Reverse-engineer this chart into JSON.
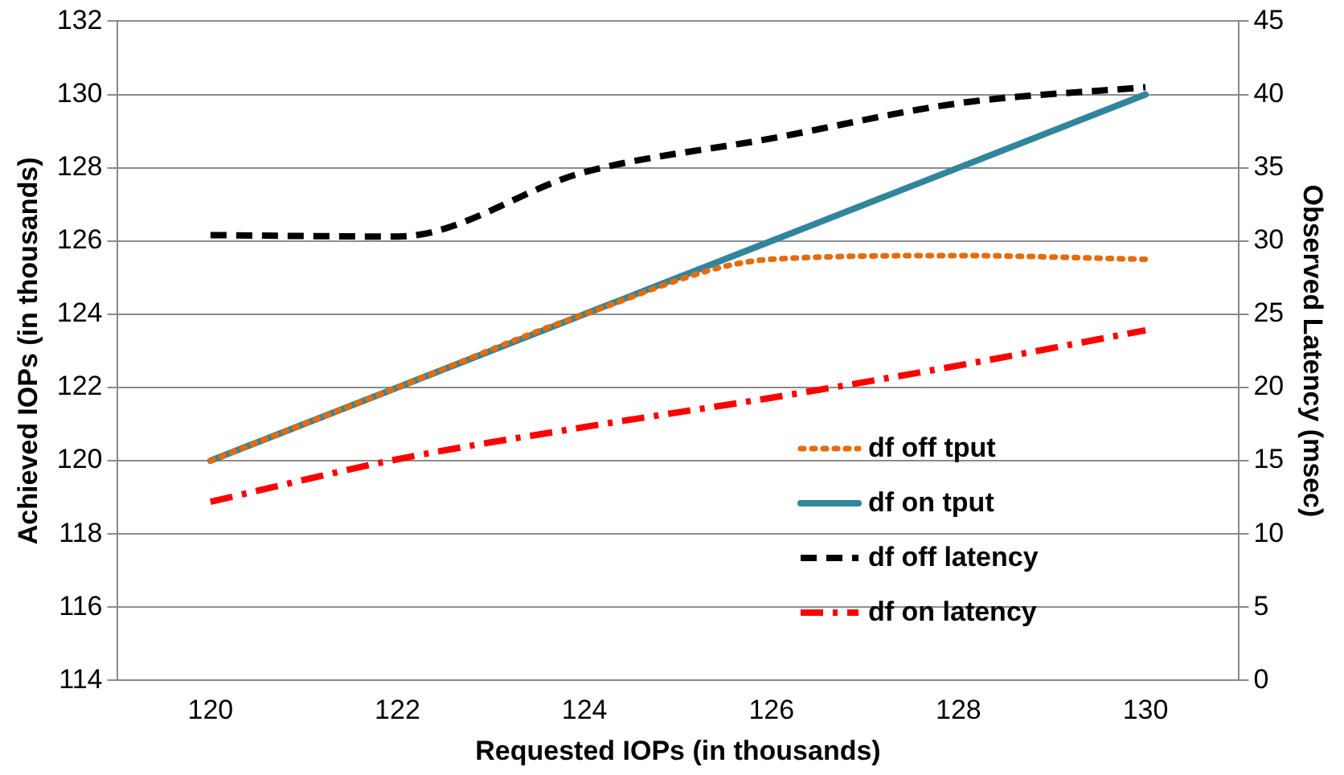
{
  "chart_data": {
    "type": "line",
    "xlabel": "Requested IOPs (in thousands)",
    "ylabel": "Achieved IOPs (in thousands)",
    "y2label": "Observed Latency (msec)",
    "categories": [
      "120",
      "122",
      "124",
      "126",
      "128",
      "130"
    ],
    "ylim": [
      114,
      132
    ],
    "yticks": [
      114,
      116,
      118,
      120,
      122,
      124,
      126,
      128,
      130,
      132
    ],
    "y2lim": [
      0,
      45
    ],
    "y2ticks": [
      0,
      5,
      10,
      15,
      20,
      25,
      30,
      35,
      40,
      45
    ],
    "grid": "y",
    "legend": "right",
    "marker": "none",
    "series": [
      {
        "name": "df off tput",
        "color": "#e46c0a",
        "line_style": "dotted",
        "values": [
          120,
          122,
          124,
          125.5,
          125.6,
          125.5
        ]
      },
      {
        "name": "df on tput",
        "color": "#31859c",
        "line_style": "solid",
        "values": [
          120,
          122,
          124,
          126,
          128,
          130
        ]
      },
      {
        "name": "df off latency",
        "color": "#000000",
        "line_style": "dashed",
        "axis": "y2",
        "values": [
          30.4,
          30.3,
          34.7,
          37.0,
          39.4,
          40.5
        ]
      },
      {
        "name": "df on latency",
        "color": "#ff0000",
        "line_style": "dashdot",
        "axis": "y2",
        "values": [
          12.2,
          15.1,
          17.3,
          19.3,
          21.5,
          23.9
        ]
      }
    ]
  }
}
